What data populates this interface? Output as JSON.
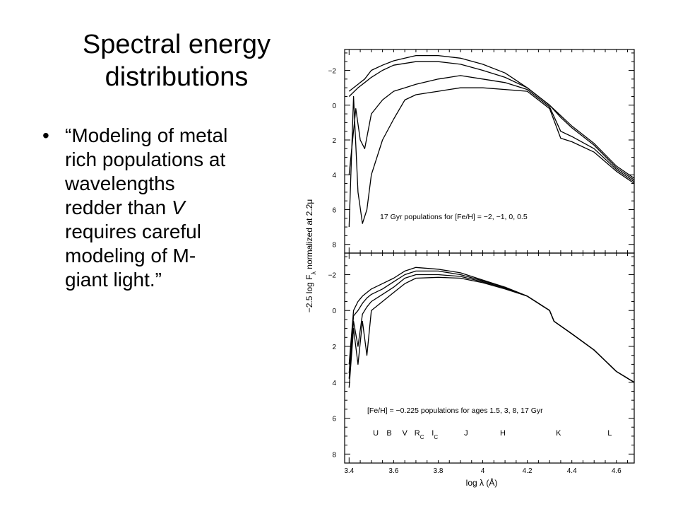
{
  "slide": {
    "title_lines": [
      "Spectral energy",
      "distributions"
    ],
    "bullet_symbol": "•",
    "bullet_lines": [
      "“Modeling of metal",
      "rich populations at",
      "wavelengths",
      "redder than ",
      "requires careful",
      "modeling of M-",
      "giant light.”"
    ],
    "bullet_italic": "V"
  },
  "chart_data": [
    {
      "type": "line",
      "panel": "top",
      "annotation": "17 Gyr populations for [Fe/H] = −2, −1, 0, 0.5",
      "ylabel": "−2.5 log F",
      "ylabel_sub": "λ",
      "ylabel_tail": " normalized at 2.2μ",
      "xlim": [
        3.38,
        4.68
      ],
      "ylim": [
        8.5,
        -3.2
      ],
      "y_ticks": [
        "−2",
        "0",
        "2",
        "4",
        "6",
        "8"
      ],
      "series": [
        {
          "x": [
            3.4,
            3.44,
            3.47,
            3.5,
            3.55,
            3.6,
            3.65,
            3.7,
            3.8,
            3.9,
            4.0,
            4.1,
            4.2,
            4.3,
            4.35,
            4.4,
            4.5,
            4.6,
            4.68
          ],
          "y": [
            -0.8,
            -1.2,
            -1.5,
            -2.0,
            -2.3,
            -2.55,
            -2.7,
            -2.85,
            -2.85,
            -2.7,
            -2.35,
            -1.85,
            -1.0,
            0.0,
            0.6,
            1.2,
            2.2,
            3.5,
            4.2
          ]
        },
        {
          "x": [
            3.4,
            3.44,
            3.47,
            3.5,
            3.55,
            3.6,
            3.65,
            3.7,
            3.8,
            3.9,
            4.0,
            4.1,
            4.2,
            4.3,
            4.35,
            4.4,
            4.5,
            4.6,
            4.68
          ],
          "y": [
            -0.5,
            -1.0,
            -1.3,
            -1.6,
            -2.0,
            -2.3,
            -2.4,
            -2.5,
            -2.5,
            -2.35,
            -2.0,
            -1.6,
            -1.0,
            0.0,
            0.7,
            1.3,
            2.3,
            3.6,
            4.3
          ]
        },
        {
          "x": [
            3.4,
            3.43,
            3.45,
            3.47,
            3.5,
            3.55,
            3.6,
            3.65,
            3.7,
            3.75,
            3.8,
            3.85,
            3.9,
            4.0,
            4.1,
            4.2,
            4.3,
            4.35,
            4.4,
            4.5,
            4.6,
            4.68
          ],
          "y": [
            4.0,
            0.2,
            2.0,
            2.5,
            0.5,
            -0.3,
            -0.8,
            -1.0,
            -1.2,
            -1.35,
            -1.5,
            -1.6,
            -1.7,
            -1.5,
            -1.3,
            -0.9,
            0.1,
            1.5,
            1.8,
            2.5,
            3.7,
            4.4
          ]
        },
        {
          "x": [
            3.4,
            3.42,
            3.44,
            3.46,
            3.48,
            3.5,
            3.55,
            3.6,
            3.65,
            3.7,
            3.75,
            3.8,
            3.85,
            3.9,
            4.0,
            4.1,
            4.2,
            4.3,
            4.35,
            4.4,
            4.5,
            4.6,
            4.68
          ],
          "y": [
            7.0,
            -0.5,
            5.0,
            6.8,
            6.0,
            4.0,
            2.0,
            0.8,
            -0.3,
            -0.6,
            -0.7,
            -0.8,
            -0.9,
            -1.0,
            -1.0,
            -0.9,
            -0.8,
            0.2,
            1.9,
            2.1,
            2.7,
            3.8,
            4.5
          ]
        }
      ]
    },
    {
      "type": "line",
      "panel": "bottom",
      "annotation": "[Fe/H] = −0.225 populations for ages 1.5, 3, 8, 17 Gyr",
      "xlabel": "log λ (Å)",
      "xlim": [
        3.38,
        4.68
      ],
      "ylim": [
        8.5,
        -3.2
      ],
      "x_ticks": [
        "3.4",
        "3.6",
        "3.8",
        "4",
        "4.2",
        "4.4",
        "4.6"
      ],
      "y_ticks": [
        "−2",
        "0",
        "2",
        "4",
        "6",
        "8"
      ],
      "filter_labels": [
        "U",
        "B",
        "V",
        "R",
        "I",
        "J",
        "H",
        "K",
        "L"
      ],
      "filter_subscripts": [
        "",
        "",
        "",
        "C",
        "C",
        "",
        "",
        "",
        ""
      ],
      "series": [
        {
          "x": [
            3.4,
            3.42,
            3.44,
            3.46,
            3.48,
            3.5,
            3.55,
            3.6,
            3.65,
            3.7,
            3.8,
            3.9,
            4.0,
            4.1,
            4.2,
            4.3,
            4.32,
            4.4,
            4.5,
            4.6,
            4.68
          ],
          "y": [
            3.0,
            0.0,
            -0.5,
            -0.8,
            -1.0,
            -1.2,
            -1.5,
            -1.8,
            -2.2,
            -2.4,
            -2.3,
            -2.1,
            -1.7,
            -1.3,
            -0.8,
            0.0,
            0.6,
            1.3,
            2.2,
            3.4,
            4.0
          ]
        },
        {
          "x": [
            3.4,
            3.42,
            3.44,
            3.46,
            3.48,
            3.5,
            3.55,
            3.6,
            3.65,
            3.7,
            3.8,
            3.9,
            4.0,
            4.1,
            4.2,
            4.3,
            4.32,
            4.4,
            4.5,
            4.6,
            4.68
          ],
          "y": [
            3.5,
            0.3,
            0.0,
            -0.4,
            -0.7,
            -0.9,
            -1.2,
            -1.6,
            -2.0,
            -2.2,
            -2.2,
            -2.0,
            -1.65,
            -1.3,
            -0.8,
            0.0,
            0.6,
            1.3,
            2.2,
            3.4,
            4.0
          ]
        },
        {
          "x": [
            3.4,
            3.42,
            3.44,
            3.46,
            3.48,
            3.5,
            3.55,
            3.6,
            3.65,
            3.7,
            3.8,
            3.9,
            4.0,
            4.1,
            4.2,
            4.3,
            4.32,
            4.4,
            4.5,
            4.6,
            4.68
          ],
          "y": [
            3.8,
            0.6,
            2.0,
            0.2,
            -0.2,
            -0.5,
            -0.9,
            -1.3,
            -1.8,
            -2.0,
            -2.0,
            -1.9,
            -1.6,
            -1.25,
            -0.8,
            0.0,
            0.6,
            1.3,
            2.2,
            3.4,
            4.0
          ]
        },
        {
          "x": [
            3.4,
            3.42,
            3.44,
            3.46,
            3.48,
            3.5,
            3.55,
            3.6,
            3.65,
            3.7,
            3.8,
            3.9,
            4.0,
            4.1,
            4.2,
            4.3,
            4.32,
            4.4,
            4.5,
            4.6,
            4.68
          ],
          "y": [
            4.3,
            1.0,
            3.0,
            0.6,
            2.5,
            0.0,
            -0.5,
            -1.0,
            -1.5,
            -1.8,
            -1.85,
            -1.8,
            -1.55,
            -1.2,
            -0.8,
            0.0,
            0.6,
            1.3,
            2.2,
            3.4,
            4.0
          ]
        }
      ]
    }
  ]
}
